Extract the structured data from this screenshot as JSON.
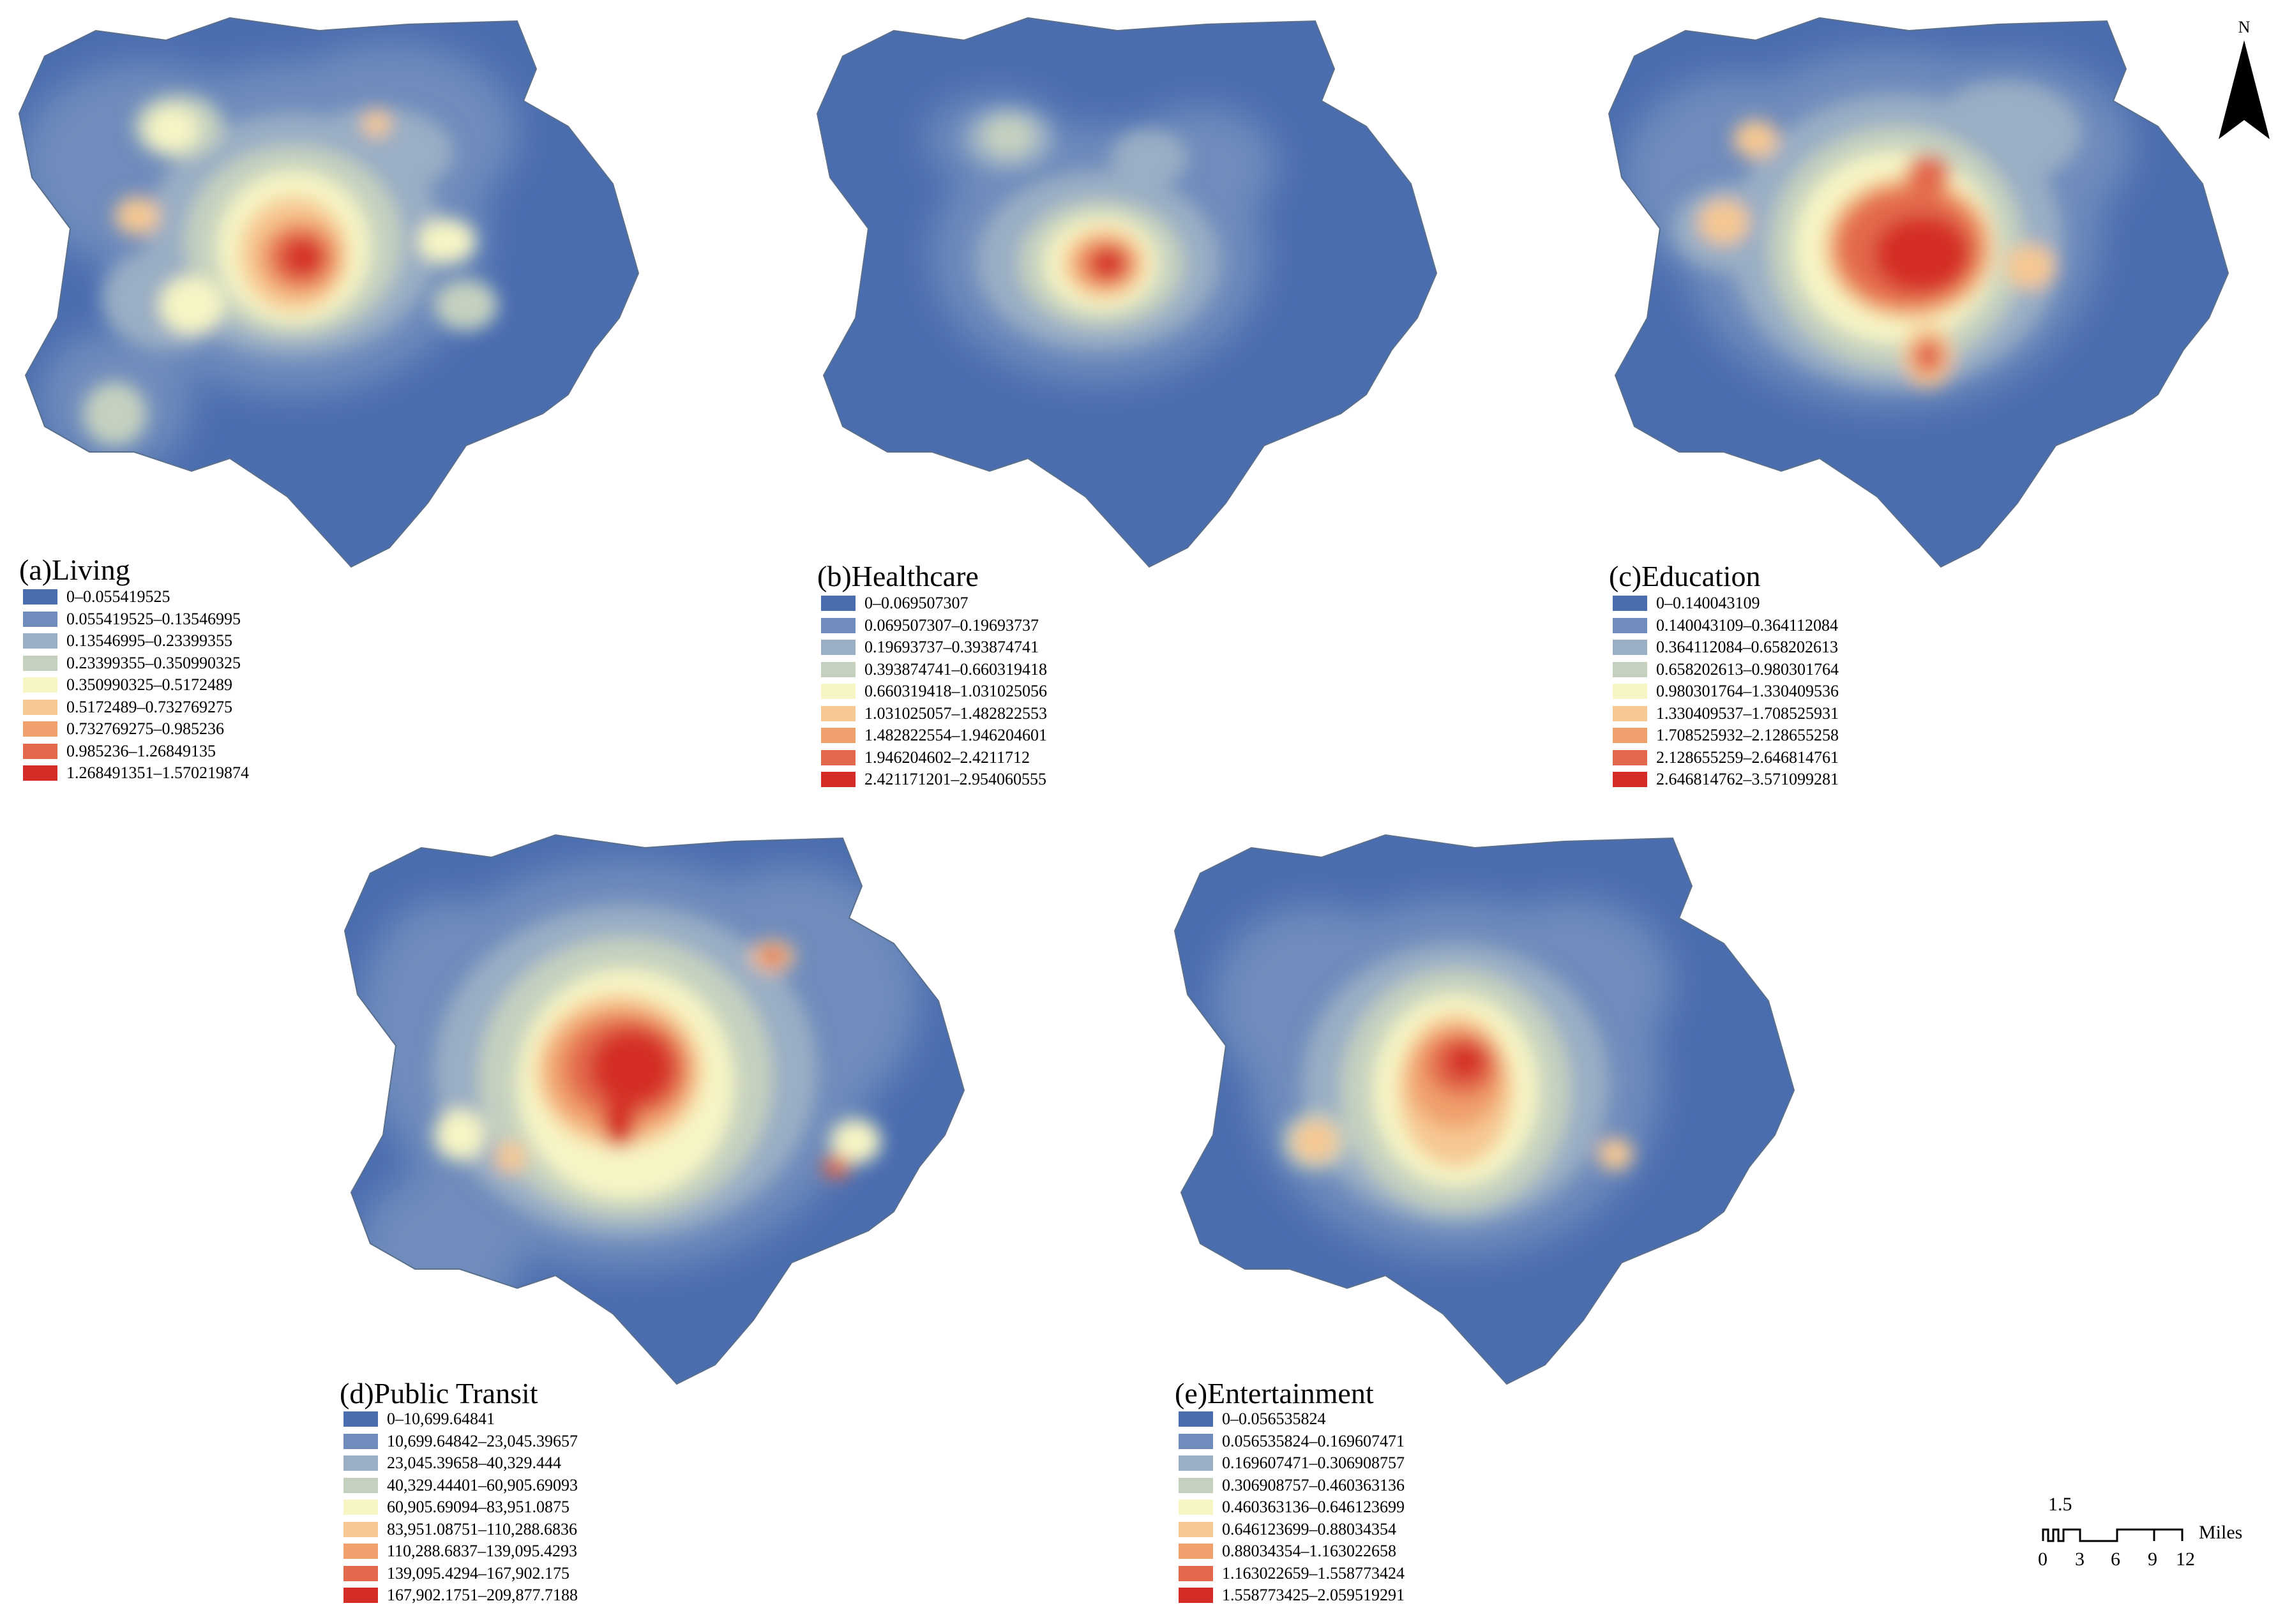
{
  "colors": [
    "#4a6db0",
    "#6f8cbc",
    "#9aaec4",
    "#c5d1bf",
    "#f7f5c4",
    "#f6c893",
    "#f0a06c",
    "#e2694b",
    "#d42d27"
  ],
  "panels": [
    {
      "title": "(a)Living",
      "ranges": [
        "0–0.055419525",
        "0.055419525–0.13546995",
        "0.13546995–0.23399355",
        "0.23399355–0.350990325",
        "0.350990325–0.5172489",
        "0.5172489–0.732769275",
        "0.732769275–0.985236",
        "0.985236–1.26849135",
        "1.268491351–1.570219874"
      ]
    },
    {
      "title": "(b)Healthcare",
      "ranges": [
        "0–0.069507307",
        "0.069507307–0.19693737",
        "0.19693737–0.393874741",
        "0.393874741–0.660319418",
        "0.660319418–1.031025056",
        "1.031025057–1.482822553",
        "1.482822554–1.946204601",
        "1.946204602–2.4211712",
        "2.421171201–2.954060555"
      ]
    },
    {
      "title": "(c)Education",
      "ranges": [
        "0–0.140043109",
        "0.140043109–0.364112084",
        "0.364112084–0.658202613",
        "0.658202613–0.980301764",
        "0.980301764–1.330409536",
        "1.330409537–1.708525931",
        "1.708525932–2.128655258",
        "2.128655259–2.646814761",
        "2.646814762–3.571099281"
      ]
    },
    {
      "title": "(d)Public Transit",
      "ranges": [
        "0–10,699.64841",
        "10,699.64842–23,045.39657",
        "23,045.39658–40,329.444",
        "40,329.44401–60,905.69093",
        "60,905.69094–83,951.0875",
        "83,951.08751–110,288.6836",
        "110,288.6837–139,095.4293",
        "139,095.4294–167,902.175",
        "167,902.1751–209,877.7188"
      ]
    },
    {
      "title": "(e)Entertainment",
      "ranges": [
        "0–0.056535824",
        "0.056535824–0.169607471",
        "0.169607471–0.306908757",
        "0.306908757–0.460363136",
        "0.460363136–0.646123699",
        "0.646123699–0.88034354",
        "0.88034354–1.163022658",
        "1.163022659–1.558773424",
        "1.558773425–2.059519291"
      ]
    }
  ],
  "north_arrow": {
    "letter": "N"
  },
  "scale_bar": {
    "top_label": "1.5",
    "ticks": [
      "0",
      "3",
      "6",
      "9",
      "12"
    ],
    "unit": "Miles"
  }
}
